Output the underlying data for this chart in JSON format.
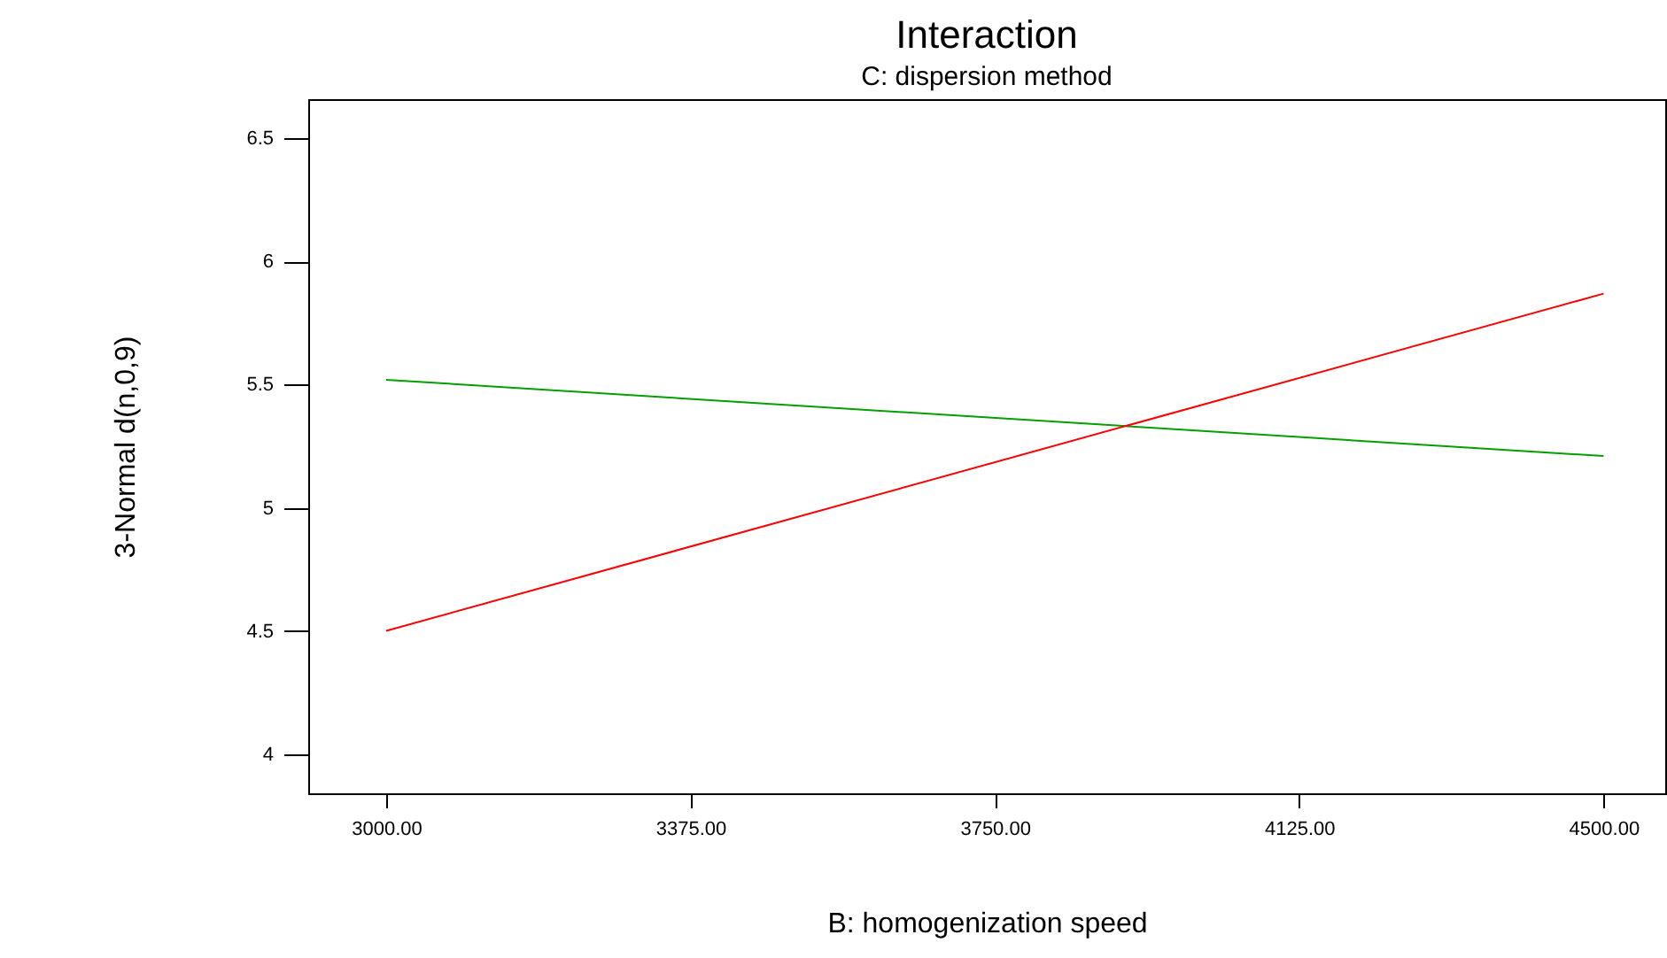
{
  "chart_data": {
    "type": "line",
    "title": "Interaction",
    "subtitle": "C: dispersion method",
    "xlabel": "B: homogenization speed",
    "ylabel": "3-Normal d(n,0,9)",
    "x": [
      3000,
      4500
    ],
    "series": [
      {
        "color": "#00a000",
        "values": [
          5.52,
          5.21
        ]
      },
      {
        "color": "#ff0000",
        "values": [
          4.5,
          5.87
        ]
      }
    ],
    "xlim": [
      2904,
      4576
    ],
    "xticks": [
      {
        "value": 3000,
        "label": "3000.00"
      },
      {
        "value": 3375,
        "label": "3375.00"
      },
      {
        "value": 3750,
        "label": "3750.00"
      },
      {
        "value": 4125,
        "label": "4125.00"
      },
      {
        "value": 4500,
        "label": "4500.00"
      }
    ],
    "ylim": [
      3.84,
      6.66
    ],
    "yticks": [
      4,
      4.5,
      5,
      5.5,
      6,
      6.5
    ],
    "grid": false,
    "marker": "none",
    "line_style": "solid"
  }
}
